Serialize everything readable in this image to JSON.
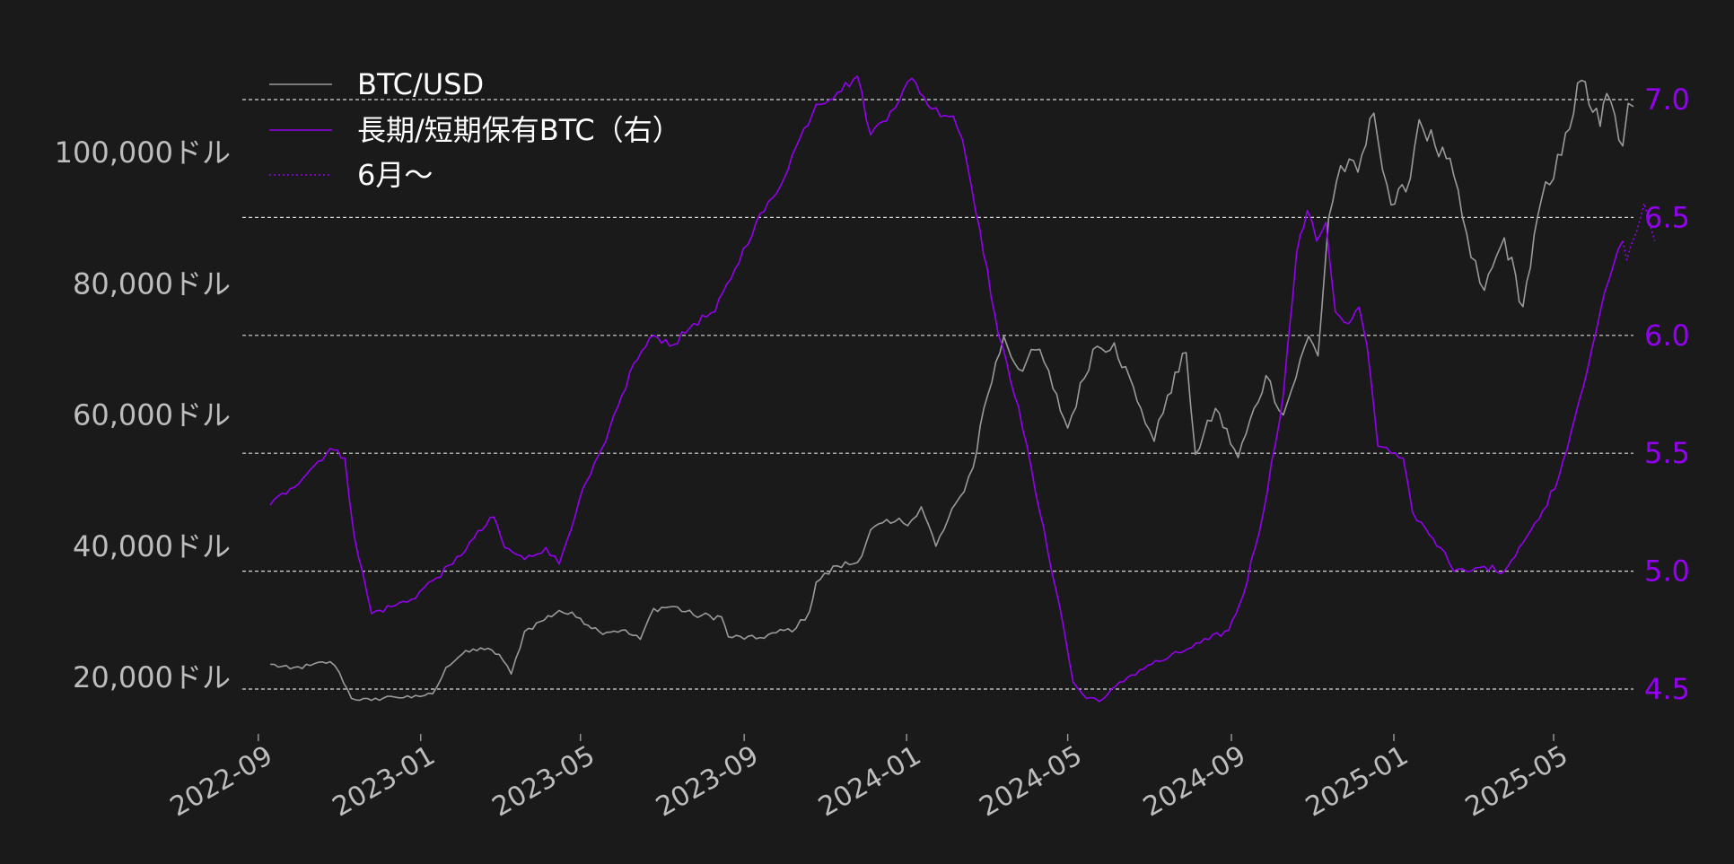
{
  "chart_data": {
    "type": "line",
    "title": "",
    "xlabel": "",
    "ylabel_left": "",
    "ylabel_right": "",
    "background": "#1a1a1a",
    "grid": "horizontal dashed (right axis ticks)",
    "legend_position": "top-left",
    "x_range": [
      "2022-08-20",
      "2025-06-30"
    ],
    "x_ticks": [
      "2022-09",
      "2023-01",
      "2023-05",
      "2023-09",
      "2024-01",
      "2024-05",
      "2024-09",
      "2025-01",
      "2025-05"
    ],
    "y_left": {
      "range": [
        12000,
        124000
      ],
      "ticks": [
        20000,
        40000,
        60000,
        80000,
        100000
      ],
      "tick_labels": [
        "20,000ドル",
        "40,000ドル",
        "60,000ドル",
        "80,000ドル",
        "100,000ドル"
      ]
    },
    "y_right": {
      "range": [
        4.42,
        7.12
      ],
      "ticks": [
        4.5,
        5.0,
        5.5,
        6.0,
        6.5,
        7.0
      ],
      "tick_labels": [
        "4.5",
        "5.0",
        "5.5",
        "6.0",
        "6.5",
        "7.0"
      ]
    },
    "series": [
      {
        "name": "BTC/USD",
        "axis": "left",
        "color": "#9a9a9a",
        "style": "solid",
        "points": [
          [
            "2022-09-10",
            22000
          ],
          [
            "2022-09-25",
            21300
          ],
          [
            "2022-10-10",
            21800
          ],
          [
            "2022-10-25",
            22400
          ],
          [
            "2022-11-01",
            20700
          ],
          [
            "2022-11-10",
            16800
          ],
          [
            "2022-11-25",
            16500
          ],
          [
            "2022-12-10",
            17100
          ],
          [
            "2022-12-25",
            16900
          ],
          [
            "2023-01-10",
            17500
          ],
          [
            "2023-01-20",
            21500
          ],
          [
            "2023-02-01",
            23500
          ],
          [
            "2023-02-15",
            24500
          ],
          [
            "2023-03-01",
            23500
          ],
          [
            "2023-03-10",
            20500
          ],
          [
            "2023-03-20",
            27000
          ],
          [
            "2023-04-01",
            28500
          ],
          [
            "2023-04-15",
            30200
          ],
          [
            "2023-05-01",
            29000
          ],
          [
            "2023-05-15",
            27000
          ],
          [
            "2023-06-01",
            27200
          ],
          [
            "2023-06-15",
            25800
          ],
          [
            "2023-06-25",
            30500
          ],
          [
            "2023-07-10",
            30800
          ],
          [
            "2023-07-25",
            29500
          ],
          [
            "2023-08-15",
            29200
          ],
          [
            "2023-08-20",
            26200
          ],
          [
            "2023-09-10",
            25900
          ],
          [
            "2023-09-25",
            26800
          ],
          [
            "2023-10-10",
            27500
          ],
          [
            "2023-10-20",
            30000
          ],
          [
            "2023-10-25",
            34500
          ],
          [
            "2023-11-10",
            37000
          ],
          [
            "2023-11-25",
            37500
          ],
          [
            "2023-12-05",
            42500
          ],
          [
            "2023-12-20",
            43500
          ],
          [
            "2024-01-05",
            44000
          ],
          [
            "2024-01-12",
            46000
          ],
          [
            "2024-01-23",
            40000
          ],
          [
            "2024-02-10",
            47500
          ],
          [
            "2024-02-20",
            52000
          ],
          [
            "2024-02-28",
            61000
          ],
          [
            "2024-03-14",
            72000
          ],
          [
            "2024-03-25",
            67000
          ],
          [
            "2024-04-10",
            70000
          ],
          [
            "2024-04-20",
            64000
          ],
          [
            "2024-05-01",
            58000
          ],
          [
            "2024-05-20",
            70000
          ],
          [
            "2024-06-05",
            71000
          ],
          [
            "2024-06-25",
            61000
          ],
          [
            "2024-07-05",
            56000
          ],
          [
            "2024-07-15",
            63000
          ],
          [
            "2024-07-29",
            69500
          ],
          [
            "2024-08-05",
            54000
          ],
          [
            "2024-08-20",
            61000
          ],
          [
            "2024-09-06",
            53500
          ],
          [
            "2024-09-27",
            66000
          ],
          [
            "2024-10-10",
            60000
          ],
          [
            "2024-10-29",
            72000
          ],
          [
            "2024-11-05",
            69000
          ],
          [
            "2024-11-13",
            90000
          ],
          [
            "2024-11-22",
            98000
          ],
          [
            "2024-12-05",
            97000
          ],
          [
            "2024-12-17",
            106000
          ],
          [
            "2024-12-30",
            92000
          ],
          [
            "2025-01-10",
            94000
          ],
          [
            "2025-01-20",
            105000
          ],
          [
            "2025-02-01",
            101000
          ],
          [
            "2025-02-15",
            96500
          ],
          [
            "2025-02-28",
            84000
          ],
          [
            "2025-03-10",
            79000
          ],
          [
            "2025-03-25",
            87000
          ],
          [
            "2025-04-08",
            76500
          ],
          [
            "2025-04-22",
            93000
          ],
          [
            "2025-05-01",
            96000
          ],
          [
            "2025-05-10",
            103000
          ],
          [
            "2025-05-22",
            111000
          ],
          [
            "2025-06-05",
            104000
          ],
          [
            "2025-06-10",
            109000
          ],
          [
            "2025-06-22",
            101000
          ],
          [
            "2025-06-26",
            107500
          ],
          [
            "2025-06-30",
            107000
          ]
        ]
      },
      {
        "name": "長期/短期保有BTC（右）",
        "axis": "right",
        "color": "#9400f0",
        "style": "solid",
        "points": [
          [
            "2022-09-10",
            5.28
          ],
          [
            "2022-09-25",
            5.35
          ],
          [
            "2022-10-10",
            5.43
          ],
          [
            "2022-10-25",
            5.52
          ],
          [
            "2022-11-05",
            5.48
          ],
          [
            "2022-11-12",
            5.15
          ],
          [
            "2022-11-25",
            4.82
          ],
          [
            "2022-12-10",
            4.85
          ],
          [
            "2022-12-25",
            4.88
          ],
          [
            "2023-01-10",
            4.96
          ],
          [
            "2023-01-25",
            5.03
          ],
          [
            "2023-02-10",
            5.14
          ],
          [
            "2023-02-25",
            5.23
          ],
          [
            "2023-03-05",
            5.1
          ],
          [
            "2023-03-20",
            5.05
          ],
          [
            "2023-04-05",
            5.1
          ],
          [
            "2023-04-15",
            5.03
          ],
          [
            "2023-04-30",
            5.3
          ],
          [
            "2023-05-20",
            5.55
          ],
          [
            "2023-06-10",
            5.88
          ],
          [
            "2023-06-25",
            6.0
          ],
          [
            "2023-07-10",
            5.96
          ],
          [
            "2023-07-25",
            6.05
          ],
          [
            "2023-08-10",
            6.1
          ],
          [
            "2023-08-25",
            6.28
          ],
          [
            "2023-09-10",
            6.48
          ],
          [
            "2023-09-25",
            6.6
          ],
          [
            "2023-10-10",
            6.8
          ],
          [
            "2023-10-25",
            6.98
          ],
          [
            "2023-11-10",
            7.03
          ],
          [
            "2023-11-25",
            7.1
          ],
          [
            "2023-12-05",
            6.85
          ],
          [
            "2023-12-20",
            6.95
          ],
          [
            "2024-01-05",
            7.09
          ],
          [
            "2024-01-20",
            6.96
          ],
          [
            "2024-02-05",
            6.93
          ],
          [
            "2024-02-12",
            6.83
          ],
          [
            "2024-02-25",
            6.45
          ],
          [
            "2024-03-10",
            6.0
          ],
          [
            "2024-03-25",
            5.7
          ],
          [
            "2024-04-10",
            5.25
          ],
          [
            "2024-04-25",
            4.85
          ],
          [
            "2024-05-05",
            4.53
          ],
          [
            "2024-05-15",
            4.46
          ],
          [
            "2024-05-28",
            4.46
          ],
          [
            "2024-06-15",
            4.55
          ],
          [
            "2024-06-30",
            4.6
          ],
          [
            "2024-07-15",
            4.63
          ],
          [
            "2024-07-30",
            4.67
          ],
          [
            "2024-08-15",
            4.71
          ],
          [
            "2024-08-30",
            4.75
          ],
          [
            "2024-09-10",
            4.9
          ],
          [
            "2024-09-25",
            5.25
          ],
          [
            "2024-10-10",
            5.75
          ],
          [
            "2024-10-20",
            6.35
          ],
          [
            "2024-10-28",
            6.53
          ],
          [
            "2024-11-04",
            6.4
          ],
          [
            "2024-11-11",
            6.48
          ],
          [
            "2024-11-18",
            6.1
          ],
          [
            "2024-11-28",
            6.05
          ],
          [
            "2024-12-06",
            6.12
          ],
          [
            "2024-12-12",
            5.95
          ],
          [
            "2024-12-20",
            5.53
          ],
          [
            "2024-12-30",
            5.5
          ],
          [
            "2025-01-08",
            5.48
          ],
          [
            "2025-01-15",
            5.25
          ],
          [
            "2025-01-25",
            5.18
          ],
          [
            "2025-02-05",
            5.1
          ],
          [
            "2025-02-15",
            5.0
          ],
          [
            "2025-02-28",
            5.0
          ],
          [
            "2025-03-10",
            5.02
          ],
          [
            "2025-03-25",
            5.0
          ],
          [
            "2025-04-05",
            5.1
          ],
          [
            "2025-04-20",
            5.22
          ],
          [
            "2025-05-05",
            5.4
          ],
          [
            "2025-05-20",
            5.72
          ],
          [
            "2025-05-30",
            5.95
          ],
          [
            "2025-06-05",
            6.1
          ],
          [
            "2025-06-15",
            6.3
          ],
          [
            "2025-06-22",
            6.4
          ]
        ]
      },
      {
        "name": "6月～",
        "axis": "right",
        "color": "#9400f0",
        "style": "dotted",
        "points": [
          [
            "2025-06-22",
            6.4
          ],
          [
            "2025-06-25",
            6.32
          ],
          [
            "2025-06-28",
            6.38
          ],
          [
            "2025-07-03",
            6.45
          ],
          [
            "2025-07-08",
            6.56
          ],
          [
            "2025-07-12",
            6.48
          ],
          [
            "2025-07-16",
            6.4
          ]
        ]
      }
    ]
  }
}
